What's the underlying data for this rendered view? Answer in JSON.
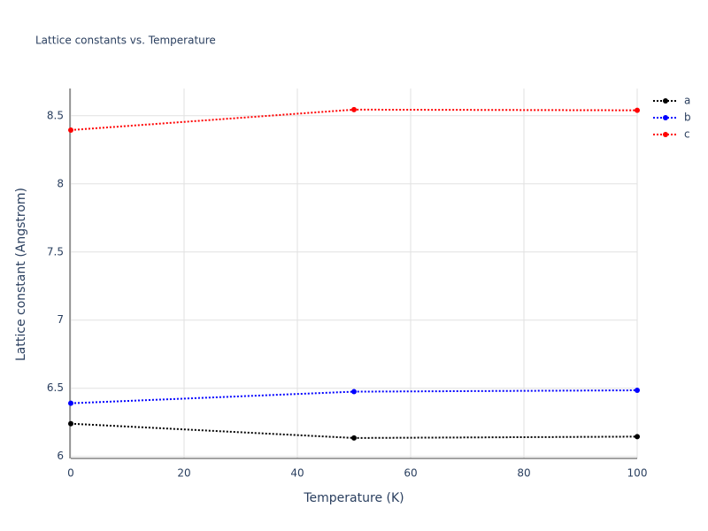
{
  "chart_data": {
    "type": "line",
    "title": "Lattice constants vs. Temperature",
    "x_label": "Temperature (K)",
    "y_label": "Lattice constant (Angstrom)",
    "x": [
      0,
      50,
      100
    ],
    "series": [
      {
        "name": "a",
        "color": "#000000",
        "values": [
          6.24,
          6.135,
          6.145
        ]
      },
      {
        "name": "b",
        "color": "#0000ff",
        "values": [
          6.39,
          6.475,
          6.485
        ]
      },
      {
        "name": "c",
        "color": "#ff0000",
        "values": [
          8.395,
          8.545,
          8.54
        ]
      }
    ],
    "xlim": [
      0,
      100
    ],
    "xticks": [
      0,
      20,
      40,
      60,
      80,
      100
    ],
    "ylim": [
      5.985,
      8.7
    ],
    "yticks": [
      6,
      6.5,
      7,
      7.5,
      8,
      8.5
    ],
    "grid": true,
    "legend": "top-right"
  }
}
